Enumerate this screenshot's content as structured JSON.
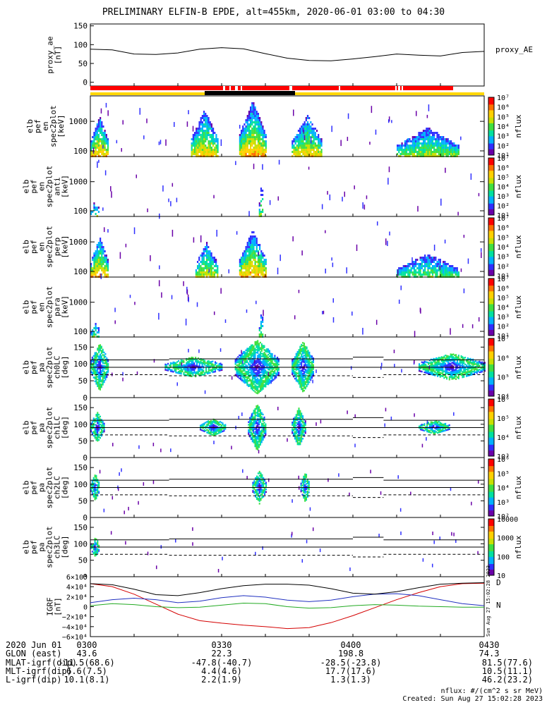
{
  "title": "PRELIMINARY ELFIN-B EPDE, alt=455km, 2020-06-01 03:00 to 04:30",
  "colors": {
    "spectrum": [
      "#6a00a8",
      "#3030ff",
      "#00b0ff",
      "#00e0a0",
      "#40e040",
      "#c8e000",
      "#ffd000",
      "#ff7000",
      "#ff0000"
    ],
    "mode_bar_red": "#ff0000",
    "mode_bar_black": "#000000",
    "mode_bar_yellow": "#ffd700",
    "igrf_bx": "#d40000",
    "igrf_by": "#22aa22",
    "igrf_bz": "#2030c0",
    "igrf_bt": "#000000"
  },
  "chart_data": [
    {
      "type": "line",
      "name": "proxy_ae",
      "ylabel": "proxy_ae [nT]",
      "ylim": [
        -10,
        155
      ],
      "yticks": [
        "150",
        "100",
        "50",
        "0"
      ],
      "legend": "proxy_AE",
      "x_minutes": [
        0,
        5,
        10,
        15,
        20,
        25,
        30,
        35,
        40,
        45,
        50,
        55,
        60,
        65,
        70,
        75,
        80,
        85,
        90
      ],
      "values": [
        88,
        86,
        75,
        74,
        78,
        88,
        92,
        89,
        76,
        64,
        58,
        57,
        62,
        68,
        75,
        72,
        70,
        79,
        82
      ]
    },
    {
      "type": "heatmap",
      "rows": [
        "elb",
        "pef",
        "en",
        "spec2plot",
        "[keV]"
      ],
      "yscale": "log",
      "yticks": [
        "1000",
        "100"
      ],
      "colorbar": {
        "label": "nflux",
        "ticks": [
          "10⁷",
          "10⁶",
          "10⁵",
          "10⁴",
          "10³",
          "10²",
          "10¹"
        ]
      }
    },
    {
      "type": "heatmap",
      "rows": [
        "elb",
        "pef",
        "en",
        "spec2plot",
        "anti",
        "[keV]"
      ],
      "yscale": "log",
      "yticks": [
        "1000",
        "100"
      ],
      "colorbar": {
        "label": "nflux",
        "ticks": [
          "10⁷",
          "10⁶",
          "10⁵",
          "10⁴",
          "10³",
          "10²",
          "10¹"
        ]
      }
    },
    {
      "type": "heatmap",
      "rows": [
        "elb",
        "pef",
        "en",
        "spec2plot",
        "perp",
        "[keV]"
      ],
      "yscale": "log",
      "yticks": [
        "1000",
        "100"
      ],
      "colorbar": {
        "label": "nflux",
        "ticks": [
          "10⁷",
          "10⁶",
          "10⁵",
          "10⁴",
          "10³",
          "10²",
          "10¹"
        ]
      }
    },
    {
      "type": "heatmap",
      "rows": [
        "elb",
        "pef",
        "en",
        "spec2plot",
        "para",
        "[keV]"
      ],
      "yscale": "log",
      "yticks": [
        "1000",
        "100"
      ],
      "colorbar": {
        "label": "nflux",
        "ticks": [
          "10⁷",
          "10⁶",
          "10⁵",
          "10⁴",
          "10³",
          "10²",
          "10¹"
        ]
      }
    },
    {
      "type": "heatmap",
      "rows": [
        "elb",
        "pef",
        "pa",
        "spec2plot",
        "ch0LC",
        "[deg]"
      ],
      "ylim": [
        0,
        180
      ],
      "yticks": [
        "150",
        "100",
        "50",
        "0"
      ],
      "colorbar": {
        "label": "nflux",
        "ticks": [
          "10⁷",
          "10⁶",
          "10⁵",
          "10⁴"
        ]
      }
    },
    {
      "type": "heatmap",
      "rows": [
        "elb",
        "pef",
        "pa",
        "spec2plot",
        "ch1LC",
        "[deg]"
      ],
      "ylim": [
        0,
        180
      ],
      "yticks": [
        "150",
        "100",
        "50",
        "0"
      ],
      "colorbar": {
        "label": "nflux",
        "ticks": [
          "10⁶",
          "10⁵",
          "10⁴",
          "10³"
        ]
      }
    },
    {
      "type": "heatmap",
      "rows": [
        "elb",
        "pef",
        "pa",
        "spec2plot",
        "ch2LC",
        "[deg]"
      ],
      "ylim": [
        0,
        180
      ],
      "yticks": [
        "150",
        "100",
        "50",
        "0"
      ],
      "colorbar": {
        "label": "nflux",
        "ticks": [
          "10⁶",
          "10⁵",
          "10⁴",
          "10³",
          "10²"
        ]
      }
    },
    {
      "type": "heatmap",
      "rows": [
        "elb",
        "pef",
        "pa",
        "spec2plot",
        "ch3LC",
        "[deg]"
      ],
      "ylim": [
        0,
        180
      ],
      "yticks": [
        "150",
        "100",
        "50",
        "0"
      ],
      "colorbar": {
        "label": "nflux",
        "ticks": [
          "10000",
          "1000",
          "100",
          "10"
        ]
      }
    },
    {
      "type": "line",
      "name": "igrf",
      "ylabel": "IGRF [nT]",
      "ylim": [
        -60000,
        60000
      ],
      "yticks": [
        "6×10⁴",
        "4×10⁴",
        "2×10⁴",
        "0",
        "−2×10⁴",
        "−4×10⁴",
        "−6×10⁴"
      ],
      "legend_labels": [
        "D",
        "N"
      ],
      "x_minutes": [
        0,
        5,
        10,
        15,
        20,
        25,
        30,
        35,
        40,
        45,
        50,
        55,
        60,
        65,
        70,
        75,
        80,
        85,
        90
      ],
      "series": [
        {
          "values": [
            46000,
            40000,
            25000,
            5000,
            -15000,
            -28000,
            -33000,
            -37000,
            -40000,
            -44000,
            -42000,
            -32000,
            -18000,
            -2000,
            14000,
            28000,
            40000,
            46000,
            47000
          ]
        },
        {
          "values": [
            2000,
            6000,
            4000,
            0,
            -2000,
            -1000,
            3000,
            7000,
            6000,
            0,
            -3000,
            -2000,
            2000,
            4000,
            3000,
            1000,
            0,
            -1000,
            -1000
          ]
        },
        {
          "values": [
            8000,
            14000,
            17000,
            14000,
            8000,
            11000,
            18000,
            22000,
            19000,
            13000,
            10000,
            13000,
            20000,
            25000,
            26000,
            22000,
            14000,
            6000,
            2000
          ]
        },
        {
          "values": [
            46000,
            44000,
            35000,
            24000,
            22000,
            28000,
            36000,
            42000,
            45000,
            45000,
            43000,
            36000,
            27000,
            25000,
            30000,
            38000,
            45000,
            47000,
            48000
          ]
        }
      ]
    }
  ],
  "xaxis": {
    "labels": [
      "2020 Jun 01",
      "GLON (east)",
      "MLAT-igrf(dip)",
      "MLT-igrf(dip)",
      "L-igrf(dip)"
    ],
    "columns": [
      {
        "values": [
          "0300",
          "43.6",
          "-11.5(68.6)",
          "6.6(7.5)",
          "10.1(8.1)"
        ]
      },
      {
        "values": [
          "0330",
          "22.3",
          "-47.8(-40.7)",
          "4.4(4.6)",
          "2.2(1.9)"
        ]
      },
      {
        "values": [
          "0400",
          "198.8",
          "-28.5(-23.8)",
          "17.7(17.6)",
          "1.3(1.3)"
        ]
      },
      {
        "values": [
          "0430",
          "74.3",
          "81.5(77.6)",
          "10.5(11.1)",
          "46.2(23.2)"
        ]
      }
    ]
  },
  "footer": {
    "units": "nflux: #/(cm^2 s sr MeV)",
    "created": "Created: Sun Aug 27 15:02:28 2023",
    "side_stamp": "Sun Aug 27 15:02:28 2023"
  }
}
